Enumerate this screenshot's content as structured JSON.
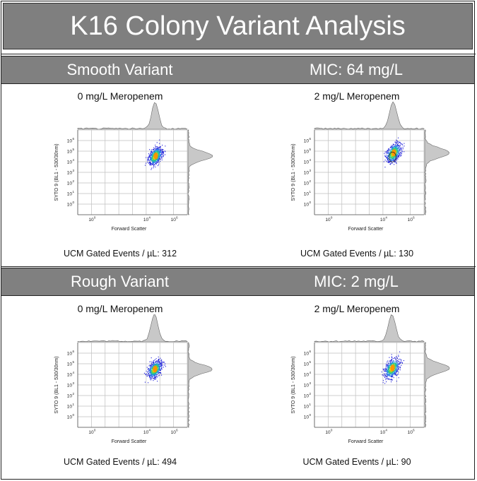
{
  "title": "K16 Colony Variant Analysis",
  "colors": {
    "bar": "#808080",
    "grid": "#bfbfbf",
    "hist": "#c8c8c8"
  },
  "sections": [
    {
      "variant": "Smooth Variant",
      "mic": "MIC: 64 mg/L",
      "panels": [
        {
          "condition": "0 mg/L Meropenem",
          "count": "UCM Gated Events / µL: 312",
          "xlabel": "Forward Scatter",
          "ylabel": "SYTO 9 (BL1 - 530/30nm)",
          "cluster": {
            "x_log": 4.65,
            "y_log": 4.55,
            "spread_x": 0.22,
            "spread_y": 0.42
          }
        },
        {
          "condition": "2 mg/L Meropenem",
          "count": "UCM Gated Events / µL: 130",
          "xlabel": "Forward Scatter",
          "ylabel": "SYTO 9 (BL1 - 530/30nm)",
          "cluster": {
            "x_log": 4.75,
            "y_log": 4.85,
            "spread_x": 0.24,
            "spread_y": 0.45
          }
        }
      ]
    },
    {
      "variant": "Rough Variant",
      "mic": "MIC: 2 mg/L",
      "panels": [
        {
          "condition": "0 mg/L Meropenem",
          "count": "UCM Gated Events / µL: 494",
          "xlabel": "Forward Scatter",
          "ylabel": "SYTO 9 (BL1 - 530/30nm)",
          "cluster": {
            "x_log": 4.6,
            "y_log": 4.5,
            "spread_x": 0.23,
            "spread_y": 0.4
          }
        },
        {
          "condition": "2 mg/L Meropenem",
          "count": "UCM Gated Events / µL: 90",
          "xlabel": "Forward Scatter",
          "ylabel": "SYTO 9 (BL1 - 530/30nm)",
          "cluster": {
            "x_log": 4.65,
            "y_log": 4.6,
            "spread_x": 0.24,
            "spread_y": 0.45
          }
        }
      ]
    }
  ],
  "axis": {
    "x_ticks": [
      "10",
      "0",
      "10",
      "10",
      "6"
    ],
    "y_ticks": [
      "10",
      "10",
      "10",
      "10",
      "10",
      "10",
      "10",
      "10"
    ],
    "y_exps": [
      "6",
      "5",
      "4",
      "3",
      "2",
      "1",
      "0",
      ""
    ],
    "x_exps": [
      "0",
      "",
      "4",
      "",
      "6"
    ]
  }
}
